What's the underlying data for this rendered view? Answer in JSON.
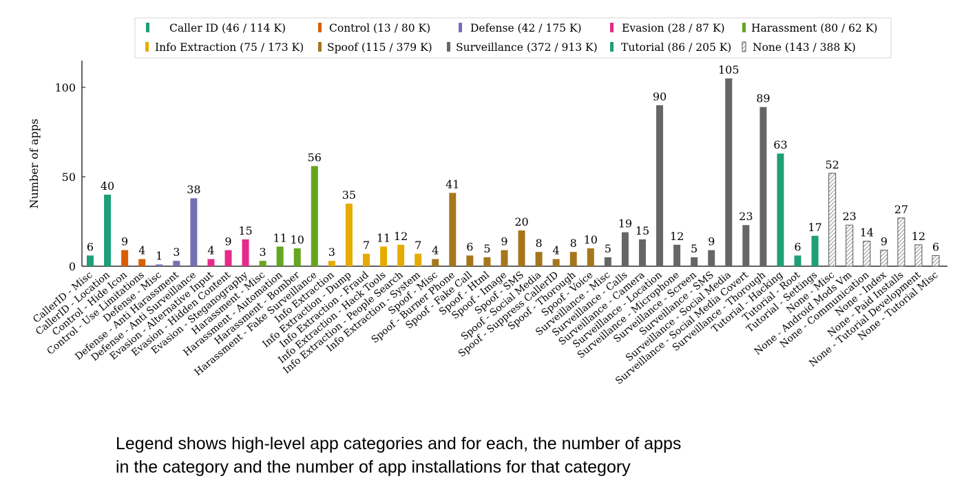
{
  "chart_data": {
    "type": "bar",
    "ylabel": "Number of apps",
    "ylim": [
      0,
      115
    ],
    "yticks": [
      0,
      50,
      100
    ],
    "grid": false,
    "legend_placement": "top",
    "legend": [
      {
        "key": "callerid",
        "label": "Caller ID (46 / 114 K)",
        "color": "#1f9e78",
        "pattern": "solid"
      },
      {
        "key": "control",
        "label": "Control (13 / 80 K)",
        "color": "#d95f02",
        "pattern": "solid"
      },
      {
        "key": "defense",
        "label": "Defense (42 / 175 K)",
        "color": "#7570b3",
        "pattern": "solid"
      },
      {
        "key": "evasion",
        "label": "Evasion (28 / 87 K)",
        "color": "#e7298a",
        "pattern": "solid"
      },
      {
        "key": "harassment",
        "label": "Harassment (80 / 62 K)",
        "color": "#66a61e",
        "pattern": "solid"
      },
      {
        "key": "info",
        "label": "Info Extraction (75 / 173 K)",
        "color": "#e6ab02",
        "pattern": "solid"
      },
      {
        "key": "spoof",
        "label": "Spoof (115 / 379 K)",
        "color": "#a6761d",
        "pattern": "solid"
      },
      {
        "key": "surveillance",
        "label": "Surveillance (372 / 913 K)",
        "color": "#666666",
        "pattern": "solid"
      },
      {
        "key": "tutorial",
        "label": "Tutorial (86 / 205 K)",
        "color": "#1f9e78",
        "pattern": "solid"
      },
      {
        "key": "none",
        "label": "None (143 / 388 K)",
        "color": "#888888",
        "pattern": "hatch"
      }
    ],
    "categories": [
      "CallerID - Misc",
      "CallerID - Location",
      "Control - Hide Icon",
      "Control - Use Limitations",
      "Defense - Misc",
      "Defense - Anti Harassment",
      "Defense - Anti Surveillance",
      "Evasion - Alternative Input",
      "Evasion - Hidden Content",
      "Evasion - Steganography",
      "Harassment - Misc",
      "Harassment - Automation",
      "Harassment - Bomber",
      "Harassment - Fake Surveillance",
      "Info Extraction",
      "Info Extraction - Dump",
      "Info Extraction - Fraud",
      "Info Extraction - Hack Tools",
      "Info Extraction - People Search",
      "Info Extraction - System",
      "Spoof - Misc",
      "Spoof - Burner Phone",
      "Spoof - Fake Call",
      "Spoof - Html",
      "Spoof - Image",
      "Spoof - SMS",
      "Spoof - Social Media",
      "Spoof - Suppress CallerID",
      "Spoof - Thorough",
      "Spoof - Voice",
      "Surveillance - Misc",
      "Surveillance - Calls",
      "Surveillance - Camera",
      "Surveillance - Location",
      "Surveillance - Microphone",
      "Surveillance - Screen",
      "Surveillance - SMS",
      "Surveillance - Social Media",
      "Surveillance - Social Media Covert",
      "Surveillance - Thorough",
      "Tutorial - Hacking",
      "Tutorial - Root",
      "Tutorial - Settings",
      "None - Misc",
      "None - Android Mods Vm",
      "None - Communication",
      "None - Index",
      "None - Paid Installs",
      "None - Tutorial Development",
      "None - Tutorial Misc"
    ],
    "values": [
      6,
      40,
      9,
      4,
      1,
      3,
      38,
      4,
      9,
      15,
      3,
      11,
      10,
      56,
      3,
      35,
      7,
      11,
      12,
      7,
      4,
      41,
      6,
      5,
      9,
      20,
      8,
      4,
      8,
      10,
      5,
      19,
      15,
      90,
      12,
      5,
      9,
      105,
      23,
      89,
      63,
      6,
      17,
      52,
      23,
      14,
      9,
      27,
      12,
      6
    ],
    "groups": [
      "callerid",
      "callerid",
      "control",
      "control",
      "defense",
      "defense",
      "defense",
      "evasion",
      "evasion",
      "evasion",
      "harassment",
      "harassment",
      "harassment",
      "harassment",
      "info",
      "info",
      "info",
      "info",
      "info",
      "info",
      "spoof",
      "spoof",
      "spoof",
      "spoof",
      "spoof",
      "spoof",
      "spoof",
      "spoof",
      "spoof",
      "spoof",
      "surveillance",
      "surveillance",
      "surveillance",
      "surveillance",
      "surveillance",
      "surveillance",
      "surveillance",
      "surveillance",
      "surveillance",
      "surveillance",
      "tutorial",
      "tutorial",
      "tutorial",
      "none",
      "none",
      "none",
      "none",
      "none",
      "none",
      "none"
    ]
  },
  "caption": {
    "line1": "Legend shows high-level app categories and for each, the number of apps",
    "line2": "in the category and the number of app installations for that category"
  }
}
